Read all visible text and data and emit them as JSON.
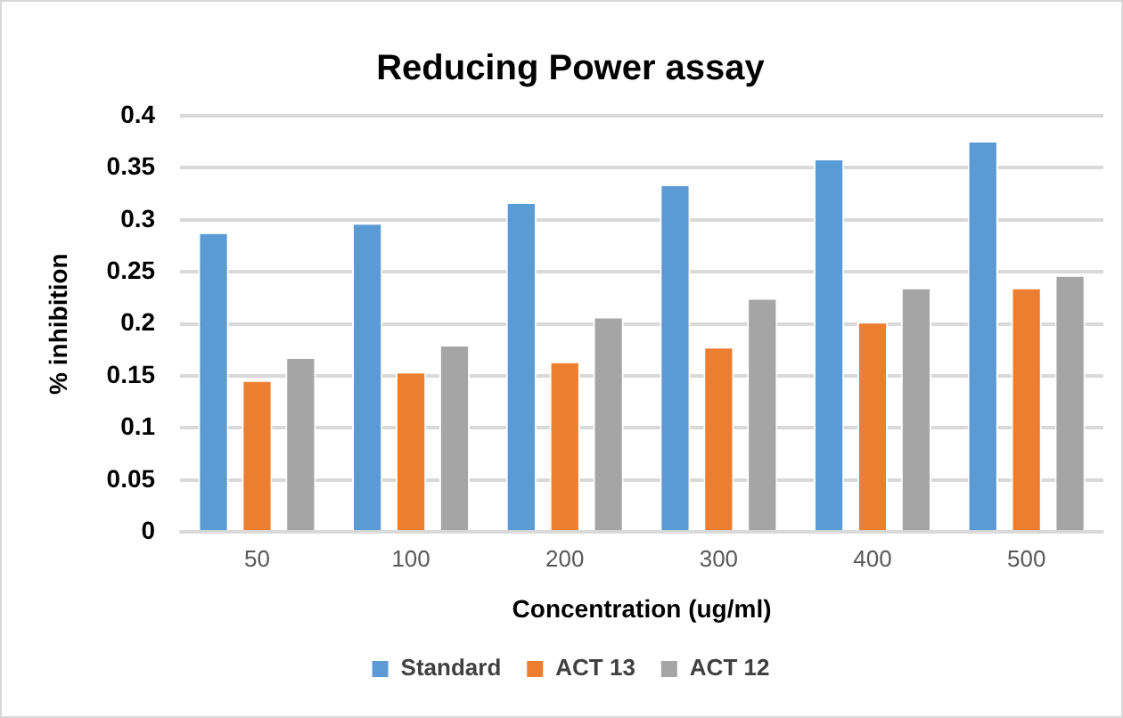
{
  "chart_data": {
    "type": "bar",
    "title": "Reducing Power assay",
    "xlabel": "Concentration (ug/ml)",
    "ylabel": "% inhibition",
    "categories": [
      "50",
      "100",
      "200",
      "300",
      "400",
      "500"
    ],
    "series": [
      {
        "name": "Standard",
        "color": "#5b9bd5",
        "values": [
          0.288,
          0.297,
          0.317,
          0.334,
          0.359,
          0.376
        ]
      },
      {
        "name": "ACT 13",
        "color": "#ed7d31",
        "values": [
          0.146,
          0.154,
          0.164,
          0.178,
          0.202,
          0.235
        ]
      },
      {
        "name": "ACT 12",
        "color": "#a5a5a5",
        "values": [
          0.168,
          0.18,
          0.207,
          0.225,
          0.235,
          0.247
        ]
      }
    ],
    "ylim": [
      0,
      0.4
    ],
    "yticks": [
      0,
      0.05,
      0.1,
      0.15,
      0.2,
      0.25,
      0.3,
      0.35,
      0.4
    ],
    "grid": "y",
    "legend": "bottom"
  }
}
